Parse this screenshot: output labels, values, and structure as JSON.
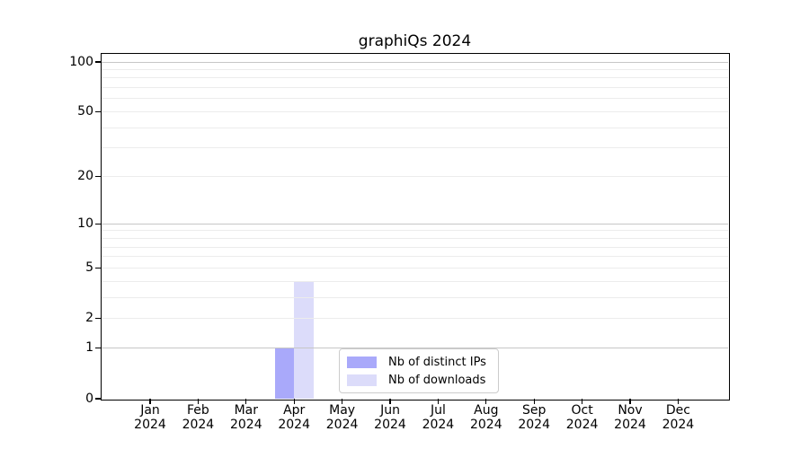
{
  "chart_data": {
    "type": "bar",
    "title": "graphiQs 2024",
    "x_axis": {
      "categories": [
        "Jan",
        "Feb",
        "Mar",
        "Apr",
        "May",
        "Jun",
        "Jul",
        "Aug",
        "Sep",
        "Oct",
        "Nov",
        "Dec"
      ],
      "year_label": "2024"
    },
    "y_axis": {
      "scale": "log(1+y)",
      "ylim": [
        0,
        113
      ],
      "tick_values": [
        100,
        50,
        20,
        10,
        5,
        2,
        1,
        0
      ],
      "tick_labels": [
        "100",
        "50",
        "20",
        "10",
        "5",
        "2",
        "1",
        "0"
      ],
      "minor_gridlines": [
        2,
        3,
        4,
        5,
        6,
        7,
        8,
        9,
        20,
        30,
        40,
        50,
        60,
        70,
        80,
        90
      ],
      "major_gridlines": [
        1,
        10,
        100
      ]
    },
    "series": [
      {
        "name": "Nb of distinct IPs",
        "color": "#a9a9fa",
        "values": [
          0,
          0,
          0,
          1,
          0,
          0,
          0,
          0,
          0,
          0,
          0,
          0
        ]
      },
      {
        "name": "Nb of downloads",
        "color": "#dcdcfa",
        "values": [
          0,
          0,
          0,
          4,
          0,
          0,
          0,
          0,
          0,
          0,
          0,
          0
        ]
      }
    ],
    "legend": {
      "position": "lower center",
      "items": [
        "Nb of distinct IPs",
        "Nb of downloads"
      ]
    },
    "colors": {
      "grid_minor": "#ececec",
      "grid_major": "#c6c6c6",
      "spine": "#000000",
      "text": "#000000",
      "background": "#ffffff"
    }
  }
}
